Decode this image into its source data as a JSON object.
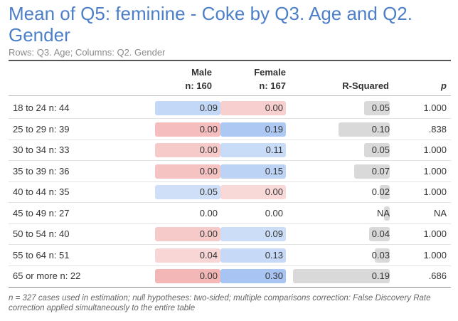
{
  "title": "Mean of Q5: feminine - Coke by Q3. Age and Q2. Gender",
  "subtitle": "Rows: Q3. Age; Columns: Q2. Gender",
  "columns": {
    "male": "Male",
    "male_n": "n: 160",
    "female": "Female",
    "female_n": "n: 167",
    "rsq": "R-Squared",
    "p": "p"
  },
  "colors": {
    "blue": "#c6d9f7",
    "red": "#f5c4c4",
    "grey": "#d9d9d9"
  },
  "rows": [
    {
      "label": "18 to 24 n: 44",
      "male": "0.09",
      "female": "0.00",
      "rsq": "0.05",
      "p": "1.000",
      "male_tone": "blue",
      "male_strength": 0.55,
      "female_tone": "red",
      "female_strength": 0.45,
      "rsq_value": 0.05
    },
    {
      "label": "25 to 29 n: 39",
      "male": "0.00",
      "female": "0.19",
      "rsq": "0.10",
      "p": ".838",
      "male_tone": "red",
      "male_strength": 0.75,
      "female_tone": "blue",
      "female_strength": 0.9,
      "rsq_value": 0.1
    },
    {
      "label": "30 to 34 n: 33",
      "male": "0.00",
      "female": "0.11",
      "rsq": "0.05",
      "p": "1.000",
      "male_tone": "red",
      "male_strength": 0.55,
      "female_tone": "blue",
      "female_strength": 0.45,
      "rsq_value": 0.05
    },
    {
      "label": "35 to 39 n: 36",
      "male": "0.00",
      "female": "0.15",
      "rsq": "0.07",
      "p": "1.000",
      "male_tone": "red",
      "male_strength": 0.65,
      "female_tone": "blue",
      "female_strength": 0.65,
      "rsq_value": 0.07
    },
    {
      "label": "40 to 44 n: 35",
      "male": "0.05",
      "female": "0.00",
      "rsq": "0.02",
      "p": "1.000",
      "male_tone": "blue",
      "male_strength": 0.35,
      "female_tone": "red",
      "female_strength": 0.3,
      "rsq_value": 0.02
    },
    {
      "label": "45 to 49 n: 27",
      "male": "0.00",
      "female": "0.00",
      "rsq": "NA",
      "p": "NA",
      "male_tone": "none",
      "male_strength": 0,
      "female_tone": "none",
      "female_strength": 0,
      "rsq_value": 0.005
    },
    {
      "label": "50 to 54 n: 40",
      "male": "0.00",
      "female": "0.09",
      "rsq": "0.04",
      "p": "1.000",
      "male_tone": "red",
      "male_strength": 0.55,
      "female_tone": "blue",
      "female_strength": 0.4,
      "rsq_value": 0.04
    },
    {
      "label": "55 to 64 n: 51",
      "male": "0.04",
      "female": "0.13",
      "rsq": "0.03",
      "p": "1.000",
      "male_tone": "red",
      "male_strength": 0.35,
      "female_tone": "blue",
      "female_strength": 0.5,
      "rsq_value": 0.03
    },
    {
      "label": "65 or more n: 22",
      "male": "0.00",
      "female": "0.30",
      "rsq": "0.19",
      "p": ".686",
      "male_tone": "red",
      "male_strength": 0.85,
      "female_tone": "blue",
      "female_strength": 1.0,
      "rsq_value": 0.19
    }
  ],
  "footer": "n = 327 cases used in estimation; null hypotheses: two-sided; multiple comparisons correction: False Discovery Rate correction applied simultaneously to the entire table"
}
